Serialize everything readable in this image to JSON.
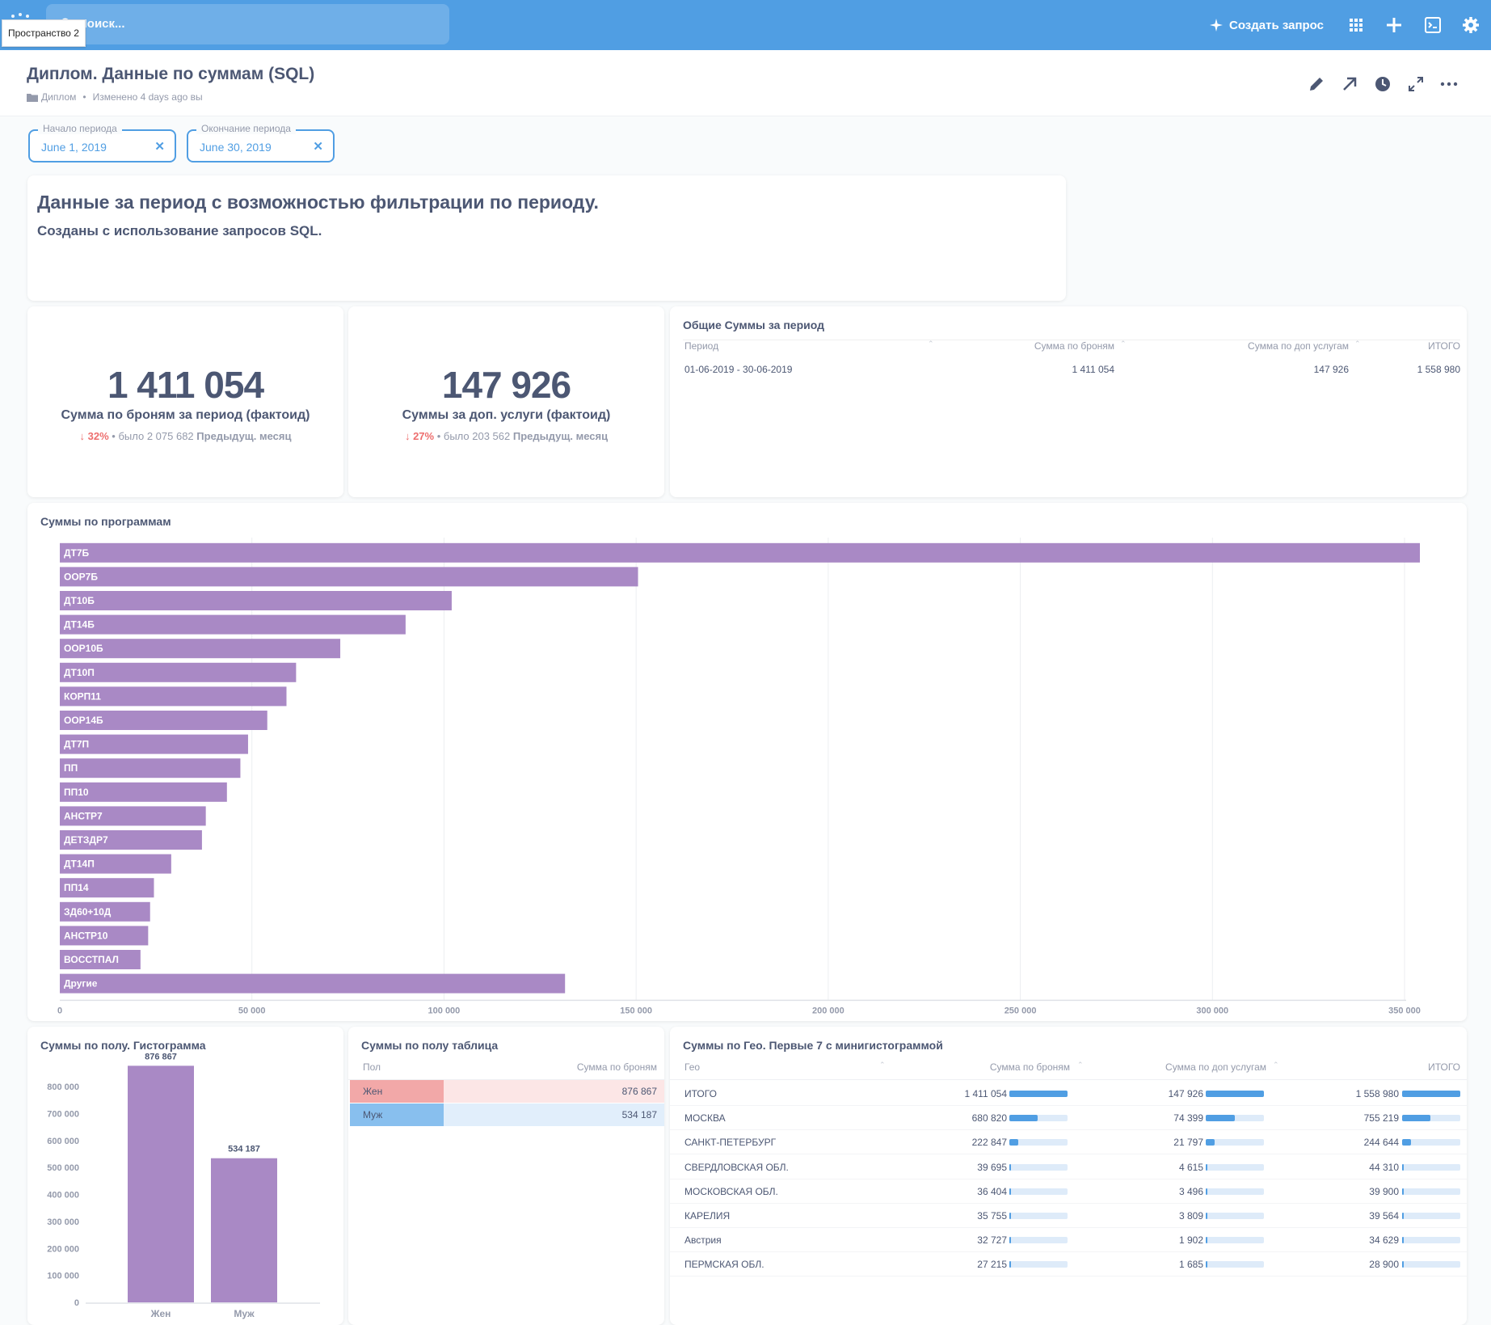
{
  "nav": {
    "search_placeholder": "Поиск...",
    "workspace_tooltip": "Пространство 2",
    "new_query_label": "Создать запрос"
  },
  "header": {
    "title": "Диплом. Данные по суммам (SQL)",
    "collection": "Диплом",
    "modified": "Изменено 4 days ago вы"
  },
  "filters": [
    {
      "label": "Начало периода",
      "value": "June 1, 2019"
    },
    {
      "label": "Окончание периода",
      "value": "June 30, 2019"
    }
  ],
  "text_card": {
    "heading": "Данные за период с возможностью фильтрации по периоду.",
    "body": "Созданы с использование запросов SQL."
  },
  "scalar1": {
    "value": "1 411 054",
    "caption": "Сумма по броням за период (фактоид)",
    "trend_pct": "32%",
    "trend_prev": "было 2 075 682",
    "trend_label": "Предыдущ. месяц"
  },
  "scalar2": {
    "value": "147 926",
    "caption": "Суммы за доп. услуги (фактоид)",
    "trend_pct": "27%",
    "trend_prev": "было 203 562",
    "trend_label": "Предыдущ. месяц"
  },
  "totals_table": {
    "title": "Общие Суммы за период",
    "columns": [
      "Период",
      "Сумма по броням",
      "Сумма по доп услугам",
      "ИТОГО"
    ],
    "rows": [
      [
        "01-06-2019 - 30-06-2019",
        "1 411 054",
        "147 926",
        "1 558 980"
      ]
    ]
  },
  "programs_chart": {
    "title": "Суммы по программам"
  },
  "gender_hist": {
    "title": "Суммы по полу. Гистограмма"
  },
  "gender_table": {
    "title": "Суммы по полу таблица",
    "columns": [
      "Пол",
      "Сумма по броням"
    ],
    "rows": [
      [
        "Жен",
        "876 867"
      ],
      [
        "Муж",
        "534 187"
      ]
    ]
  },
  "geo_table": {
    "title": "Суммы по Гео. Первые 7 с минигистограммой",
    "columns": [
      "Гео",
      "Сумма по броням",
      "Сумма по доп услугам",
      "ИТОГО"
    ],
    "rows": [
      {
        "geo": "ИТОГО",
        "b": "1 411 054",
        "bv": 1411054,
        "d": "147 926",
        "dv": 147926,
        "t": "1 558 980",
        "tv": 1558980
      },
      {
        "geo": "МОСКВА",
        "b": "680 820",
        "bv": 680820,
        "d": "74 399",
        "dv": 74399,
        "t": "755 219",
        "tv": 755219
      },
      {
        "geo": "САНКТ-ПЕТЕРБУРГ",
        "b": "222 847",
        "bv": 222847,
        "d": "21 797",
        "dv": 21797,
        "t": "244 644",
        "tv": 244644
      },
      {
        "geo": "СВЕРДЛОВСКАЯ ОБЛ.",
        "b": "39 695",
        "bv": 39695,
        "d": "4 615",
        "dv": 4615,
        "t": "44 310",
        "tv": 44310
      },
      {
        "geo": "МОСКОВСКАЯ ОБЛ.",
        "b": "36 404",
        "bv": 36404,
        "d": "3 496",
        "dv": 3496,
        "t": "39 900",
        "tv": 39900
      },
      {
        "geo": "КАРЕЛИЯ",
        "b": "35 755",
        "bv": 35755,
        "d": "3 809",
        "dv": 3809,
        "t": "39 564",
        "tv": 39564
      },
      {
        "geo": "Австрия",
        "b": "32 727",
        "bv": 32727,
        "d": "1 902",
        "dv": 1902,
        "t": "34 629",
        "tv": 34629
      },
      {
        "geo": "ПЕРМСКАЯ ОБЛ.",
        "b": "27 215",
        "bv": 27215,
        "d": "1 685",
        "dv": 1685,
        "t": "28 900",
        "tv": 28900
      }
    ]
  },
  "colors": {
    "brand": "#509ee3",
    "bar": "#a989c5",
    "text": "#4c5773",
    "muted": "#949aab",
    "down": "#ed6e6e",
    "female": "#f2a8a8",
    "male": "#88bfee"
  },
  "chart_data": [
    {
      "type": "bar",
      "orientation": "horizontal",
      "title": "Суммы по программам",
      "categories": [
        "ДТ7Б",
        "ООР7Б",
        "ДТ10Б",
        "ДТ14Б",
        "ООР10Б",
        "ДТ10П",
        "КОРП11",
        "ООР14Б",
        "ДТ7П",
        "ПП",
        "ПП10",
        "АНСТР7",
        "ДЕТЗДР7",
        "ДТ14П",
        "ПП14",
        "ЗД60+10Д",
        "АНСТР10",
        "ВОССТПАЛ",
        "Другие"
      ],
      "values": [
        354000,
        150500,
        102000,
        90000,
        73000,
        61500,
        59000,
        54000,
        49000,
        47000,
        43500,
        38000,
        37000,
        29000,
        24500,
        23500,
        23000,
        21000,
        131500
      ],
      "xlim": [
        0,
        350000
      ],
      "xticks": [
        0,
        50000,
        100000,
        150000,
        200000,
        250000,
        300000,
        350000
      ],
      "xtick_labels": [
        "0",
        "50 000",
        "100 000",
        "150 000",
        "200 000",
        "250 000",
        "300 000",
        "350 000"
      ],
      "grid": true
    },
    {
      "type": "bar",
      "title": "Суммы по полу. Гистограмма",
      "categories": [
        "Жен",
        "Муж"
      ],
      "values": [
        876867,
        534187
      ],
      "value_labels": [
        "876 867",
        "534 187"
      ],
      "ylim": [
        0,
        800000
      ],
      "yticks": [
        0,
        100000,
        200000,
        300000,
        400000,
        500000,
        600000,
        700000,
        800000
      ],
      "ytick_labels": [
        "0",
        "100 000",
        "200 000",
        "300 000",
        "400 000",
        "500 000",
        "600 000",
        "700 000",
        "800 000"
      ]
    }
  ]
}
